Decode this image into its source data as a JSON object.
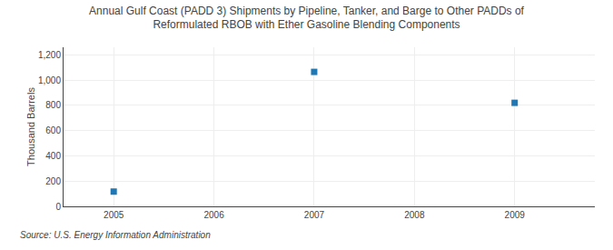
{
  "chart_data": {
    "type": "scatter",
    "title": "Annual Gulf Coast (PADD 3) Shipments by Pipeline, Tanker, and Barge to Other PADDs of\nReformulated RBOB with Ether Gasoline Blending Components",
    "ylabel": "Thousand Barrels",
    "annotations": [
      "Source: U.S. Energy Information Administration"
    ],
    "x": [
      2005,
      2007,
      2009
    ],
    "values": [
      117,
      1065,
      820
    ],
    "xlim": [
      2004.5,
      2009.8
    ],
    "ylim": [
      0,
      1260
    ],
    "xticks": [
      2005,
      2006,
      2007,
      2008,
      2009
    ],
    "yticks": [
      0,
      200,
      400,
      600,
      800,
      {
        "value": 1000,
        "label": "1,000"
      },
      {
        "value": 1200,
        "label": "1,200"
      }
    ],
    "grid": true,
    "marker": "square"
  }
}
